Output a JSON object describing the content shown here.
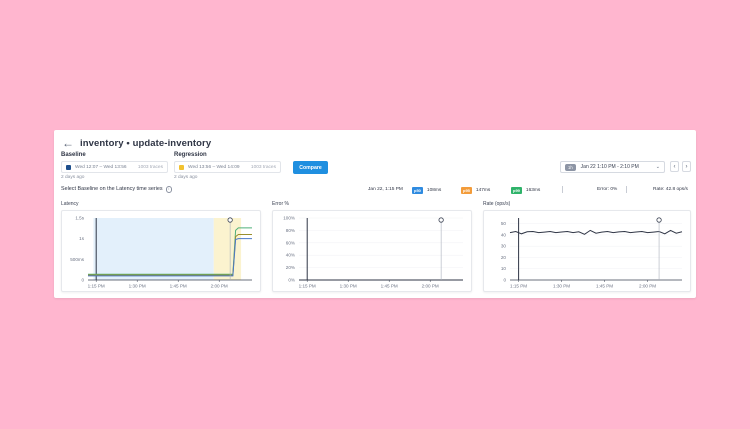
{
  "header": {
    "title": "inventory • update-inventory"
  },
  "baseline": {
    "label": "Baseline",
    "range": "Wed 12:07 – Wed 13:56",
    "traces": "1003 traces",
    "ago": "2 days ago",
    "color": "#1e4f8c"
  },
  "regression": {
    "label": "Regression",
    "range": "Wed 13:56 – Wed 14:09",
    "traces": "1003 traces",
    "ago": "2 days ago",
    "color": "#f2c230"
  },
  "compare_button": "Compare",
  "time_range": {
    "badge": "1h",
    "value": "Jan 22 1:10 PM - 2:10 PM"
  },
  "hint": "Select Baseline on the Latency time series",
  "stats": {
    "timestamp": "Jan 22, 1:15 PM",
    "p50_label": "p50",
    "p50_value": "108ms",
    "p95_label": "p95",
    "p95_value": "147ms",
    "p99_label": "p99",
    "p99_value": "163ms",
    "error": "Error: 0%",
    "rate": "Rate: 42.8 ops/s",
    "colors": {
      "p50": "#2f8be0",
      "p95": "#f39c3a",
      "p99": "#2fb36a"
    }
  },
  "chart_data": [
    {
      "type": "line",
      "title": "Latency",
      "x_ticks": [
        "1:15 PM",
        "1:30 PM",
        "1:45 PM",
        "2:00 PM"
      ],
      "y_ticks": [
        "1.5s",
        "1s",
        "500ms",
        "0"
      ],
      "y_tick_values": [
        1.5,
        1.0,
        0.5,
        0
      ],
      "ylim": [
        0,
        1.5
      ],
      "x": [
        0,
        5,
        10,
        15,
        20,
        25,
        30,
        35,
        40,
        45,
        50,
        53,
        54,
        55,
        56,
        60
      ],
      "series": [
        {
          "values": [
            0.14,
            0.14,
            0.14,
            0.14,
            0.14,
            0.14,
            0.14,
            0.14,
            0.14,
            0.14,
            0.14,
            0.14,
            1.2,
            1.26,
            1.26,
            1.26
          ],
          "color": "#4fb07a"
        },
        {
          "values": [
            0.12,
            0.12,
            0.12,
            0.12,
            0.12,
            0.12,
            0.12,
            0.12,
            0.12,
            0.12,
            0.12,
            0.12,
            1.05,
            1.1,
            1.1,
            1.1
          ],
          "color": "#9a8f2e"
        },
        {
          "values": [
            0.1,
            0.1,
            0.1,
            0.1,
            0.1,
            0.1,
            0.1,
            0.1,
            0.1,
            0.1,
            0.1,
            0.1,
            0.98,
            1.0,
            1.0,
            1.0
          ],
          "color": "#4a78c8"
        }
      ],
      "baseline_band": [
        2,
        46
      ],
      "regression_band": [
        46,
        56
      ],
      "cursor_x": 3,
      "marker_x": 52
    },
    {
      "type": "line",
      "title": "Error %",
      "x_ticks": [
        "1:15 PM",
        "1:30 PM",
        "1:45 PM",
        "2:00 PM"
      ],
      "y_ticks": [
        "100%",
        "80%",
        "60%",
        "40%",
        "20%",
        "0%"
      ],
      "y_tick_values": [
        100,
        80,
        60,
        40,
        20,
        0
      ],
      "ylim": [
        0,
        100
      ],
      "x": [
        0,
        60
      ],
      "series": [
        {
          "values": [
            0,
            0
          ],
          "color": "#2f3545"
        }
      ],
      "cursor_x": 3,
      "marker_x": 52
    },
    {
      "type": "line",
      "title": "Rate (ops/s)",
      "x_ticks": [
        "1:15 PM",
        "1:30 PM",
        "1:45 PM",
        "2:00 PM"
      ],
      "y_ticks": [
        "50",
        "40",
        "30",
        "20",
        "10",
        "0"
      ],
      "y_tick_values": [
        50,
        40,
        30,
        20,
        10,
        0
      ],
      "ylim": [
        0,
        55
      ],
      "x": [
        0,
        2,
        4,
        6,
        8,
        10,
        12,
        14,
        16,
        18,
        20,
        22,
        24,
        26,
        28,
        30,
        32,
        34,
        36,
        38,
        40,
        42,
        44,
        46,
        48,
        50,
        52,
        54,
        56,
        58,
        60
      ],
      "series": [
        {
          "values": [
            42,
            43,
            41,
            42.8,
            43,
            42,
            42.5,
            43,
            42,
            42.6,
            43,
            42,
            42.8,
            40.5,
            44,
            41.5,
            42.5,
            43,
            42,
            42.7,
            43,
            42,
            42.6,
            43,
            42,
            42.5,
            43,
            41,
            44,
            41.5,
            42.8
          ],
          "color": "#2f3545"
        }
      ],
      "cursor_x": 3,
      "marker_x": 52
    }
  ]
}
